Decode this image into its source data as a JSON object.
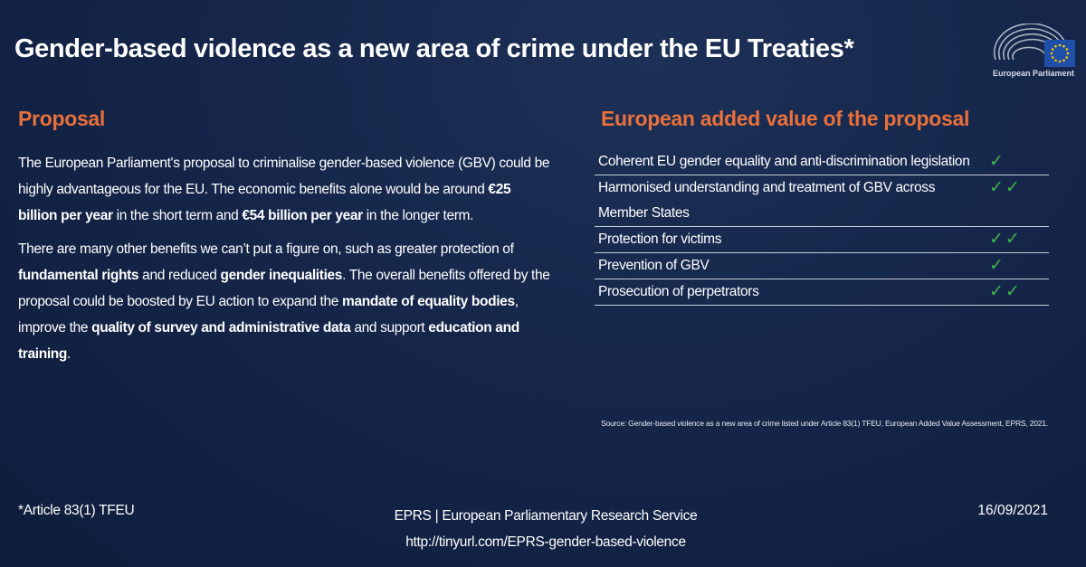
{
  "header": {
    "title": "Gender-based violence as a new area of crime under the EU Treaties*",
    "logo_text": "European Parliament"
  },
  "proposal": {
    "heading": "Proposal",
    "p1_a": "The European Parliament's proposal to criminalise gender-based violence (GBV) could be highly advantageous for the EU. The economic benefits alone would be around ",
    "p1_b1": "€25 billion per year",
    "p1_c": " in the short term and ",
    "p1_b2": "€54 billion per year",
    "p1_d": " in the longer term.",
    "p2_a": "There are many other benefits we can’t put a figure on, such as greater protection of ",
    "p2_b1": "fundamental rights",
    "p2_c": " and reduced ",
    "p2_b2": "gender inequalities",
    "p2_d": ". The overall benefits offered by the proposal could be boosted by EU action to expand the ",
    "p2_b3": "mandate of equality bodies",
    "p2_e": ", improve the ",
    "p2_b4": "quality of survey and administrative data",
    "p2_f": " and support ",
    "p2_b5": "education and training",
    "p2_g": "."
  },
  "added_value": {
    "heading": "European added value of the proposal",
    "rows": [
      {
        "label": "Coherent EU gender equality and anti-discrimination legislation",
        "checks": "✓"
      },
      {
        "label": "Harmonised understanding and treatment of GBV across Member States",
        "checks": "✓✓"
      },
      {
        "label": "Protection for victims",
        "checks": "✓✓"
      },
      {
        "label": "Prevention of GBV",
        "checks": "✓"
      },
      {
        "label": "Prosecution of perpetrators",
        "checks": "✓✓"
      }
    ]
  },
  "source": "Source: Gender-based violence as a new area of crime listed under Article 83(1) TFEU, European Added Value Assessment, EPRS, 2021.",
  "footer": {
    "note": "*Article 83(1) TFEU",
    "org": "EPRS | European Parliamentary Research Service",
    "url": "http://tinyurl.com/EPRS-gender-based-violence",
    "date": "16/09/2021"
  },
  "colors": {
    "background": "#15264a",
    "accent": "#e8703a",
    "check": "#3cb54a",
    "eu_blue": "#1f4fa8",
    "eu_star": "#ffcc00"
  }
}
